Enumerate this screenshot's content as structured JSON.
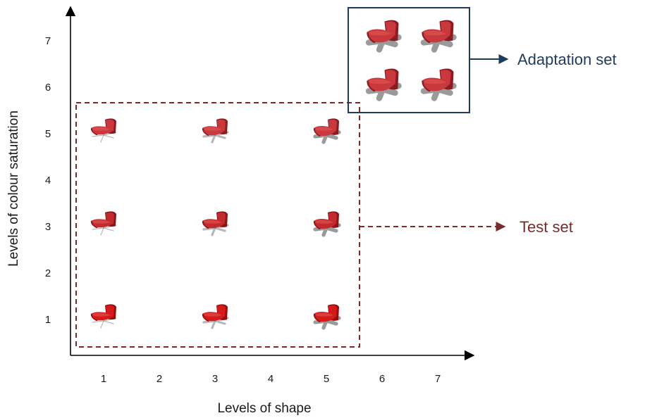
{
  "axes": {
    "x_label": "Levels of shape",
    "y_label": "Levels of colour saturation",
    "x_ticks": [
      "1",
      "2",
      "3",
      "4",
      "5",
      "6",
      "7"
    ],
    "y_ticks": [
      "1",
      "2",
      "3",
      "4",
      "5",
      "6",
      "7"
    ]
  },
  "test_set": {
    "label": "Test set",
    "color": "#7a2a2a",
    "items": [
      {
        "shape": 1,
        "saturation": 1
      },
      {
        "shape": 3,
        "saturation": 1
      },
      {
        "shape": 5,
        "saturation": 1
      },
      {
        "shape": 1,
        "saturation": 3
      },
      {
        "shape": 3,
        "saturation": 3
      },
      {
        "shape": 5,
        "saturation": 3
      },
      {
        "shape": 1,
        "saturation": 5
      },
      {
        "shape": 3,
        "saturation": 5
      },
      {
        "shape": 5,
        "saturation": 5
      }
    ]
  },
  "adaptation_set": {
    "label": "Adaptation set",
    "color": "#1f3b5c",
    "items": [
      {
        "shape": 6,
        "saturation": 7
      },
      {
        "shape": 7,
        "saturation": 7
      },
      {
        "shape": 6,
        "saturation": 6
      },
      {
        "shape": 7,
        "saturation": 6
      }
    ]
  },
  "colors": {
    "axis": "#000000",
    "chair_low": "#c42a2a",
    "chair_high": "#b01c1c",
    "legs_dark": "#7a7a7a",
    "legs_light": "#c8c8c8"
  }
}
